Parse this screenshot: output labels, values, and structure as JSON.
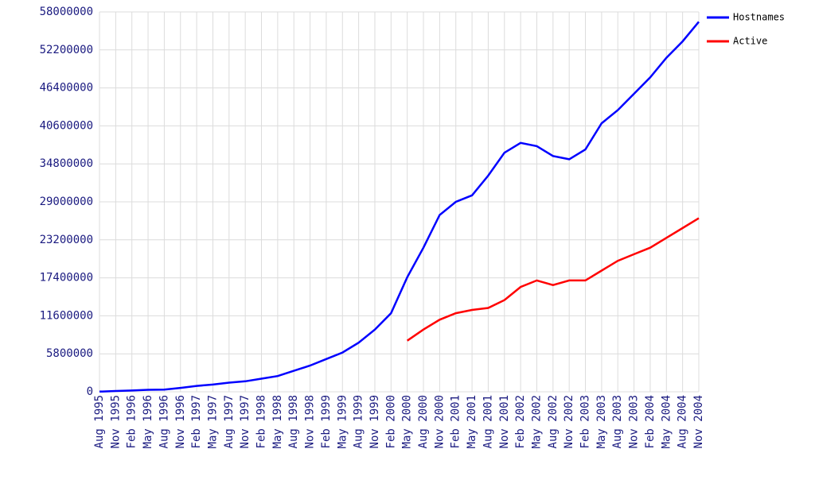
{
  "chart_data": {
    "type": "line",
    "categories": [
      "Aug 1995",
      "Nov 1995",
      "Feb 1996",
      "May 1996",
      "Aug 1996",
      "Nov 1996",
      "Feb 1997",
      "May 1997",
      "Aug 1997",
      "Nov 1997",
      "Feb 1998",
      "May 1998",
      "Aug 1998",
      "Nov 1998",
      "Feb 1999",
      "May 1999",
      "Aug 1999",
      "Nov 1999",
      "Feb 2000",
      "May 2000",
      "Aug 2000",
      "Nov 2000",
      "Feb 2001",
      "May 2001",
      "Aug 2001",
      "Nov 2001",
      "Feb 2002",
      "May 2002",
      "Aug 2002",
      "Nov 2002",
      "Feb 2003",
      "May 2003",
      "Aug 2003",
      "Nov 2003",
      "Feb 2004",
      "May 2004",
      "Aug 2004",
      "Nov 2004"
    ],
    "series": [
      {
        "name": "Hostnames",
        "color": "#0000ff",
        "values": [
          19000,
          120000,
          200000,
          300000,
          340000,
          600000,
          900000,
          1100000,
          1400000,
          1600000,
          2000000,
          2400000,
          3200000,
          4000000,
          5000000,
          6000000,
          7500000,
          9500000,
          12000000,
          17500000,
          22000000,
          27000000,
          29000000,
          30000000,
          33000000,
          36500000,
          38000000,
          37500000,
          36000000,
          35500000,
          37000000,
          41000000,
          43000000,
          45500000,
          48000000,
          51000000,
          53500000,
          56500000
        ]
      },
      {
        "name": "Active",
        "color": "#ff0000",
        "values": [
          null,
          null,
          null,
          null,
          null,
          null,
          null,
          null,
          null,
          null,
          null,
          null,
          null,
          null,
          null,
          null,
          null,
          null,
          null,
          7800000,
          9500000,
          11000000,
          12000000,
          12500000,
          12800000,
          14000000,
          16000000,
          17000000,
          16300000,
          17000000,
          17000000,
          18500000,
          20000000,
          21000000,
          22000000,
          23500000,
          25000000,
          26500000
        ]
      }
    ],
    "ylim": [
      0,
      58000000
    ],
    "yticks": [
      0,
      5800000,
      11600000,
      17400000,
      23200000,
      29000000,
      34800000,
      40600000,
      46400000,
      52200000,
      58000000
    ],
    "grid": true,
    "legend": "top-right"
  }
}
